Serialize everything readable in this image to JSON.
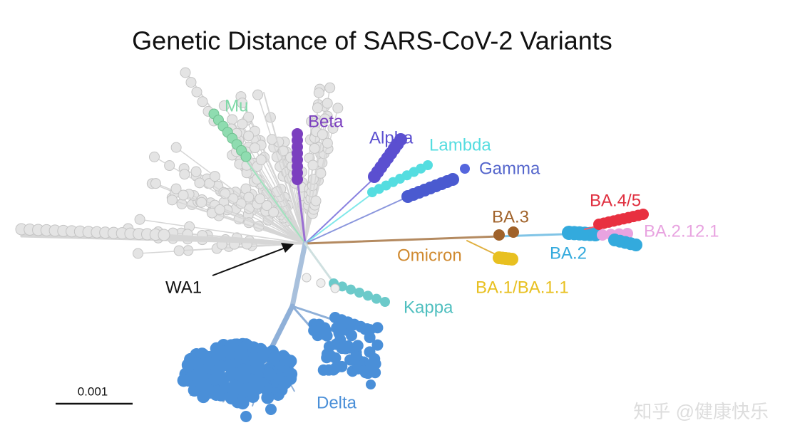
{
  "title": "Genetic Distance of SARS-CoV-2 Variants",
  "labels": [
    "Mu",
    "Beta",
    "Alpha",
    "Lambda",
    "Gamma",
    "BA.4/5",
    "BA.3",
    "BA.2.12.1",
    "Omicron",
    "BA.2",
    "BA.1/BA.1.1",
    "WA1",
    "Kappa",
    "Delta"
  ],
  "scale_bar": {
    "label": "0.001"
  },
  "watermark": "知乎 @健康快乐"
}
